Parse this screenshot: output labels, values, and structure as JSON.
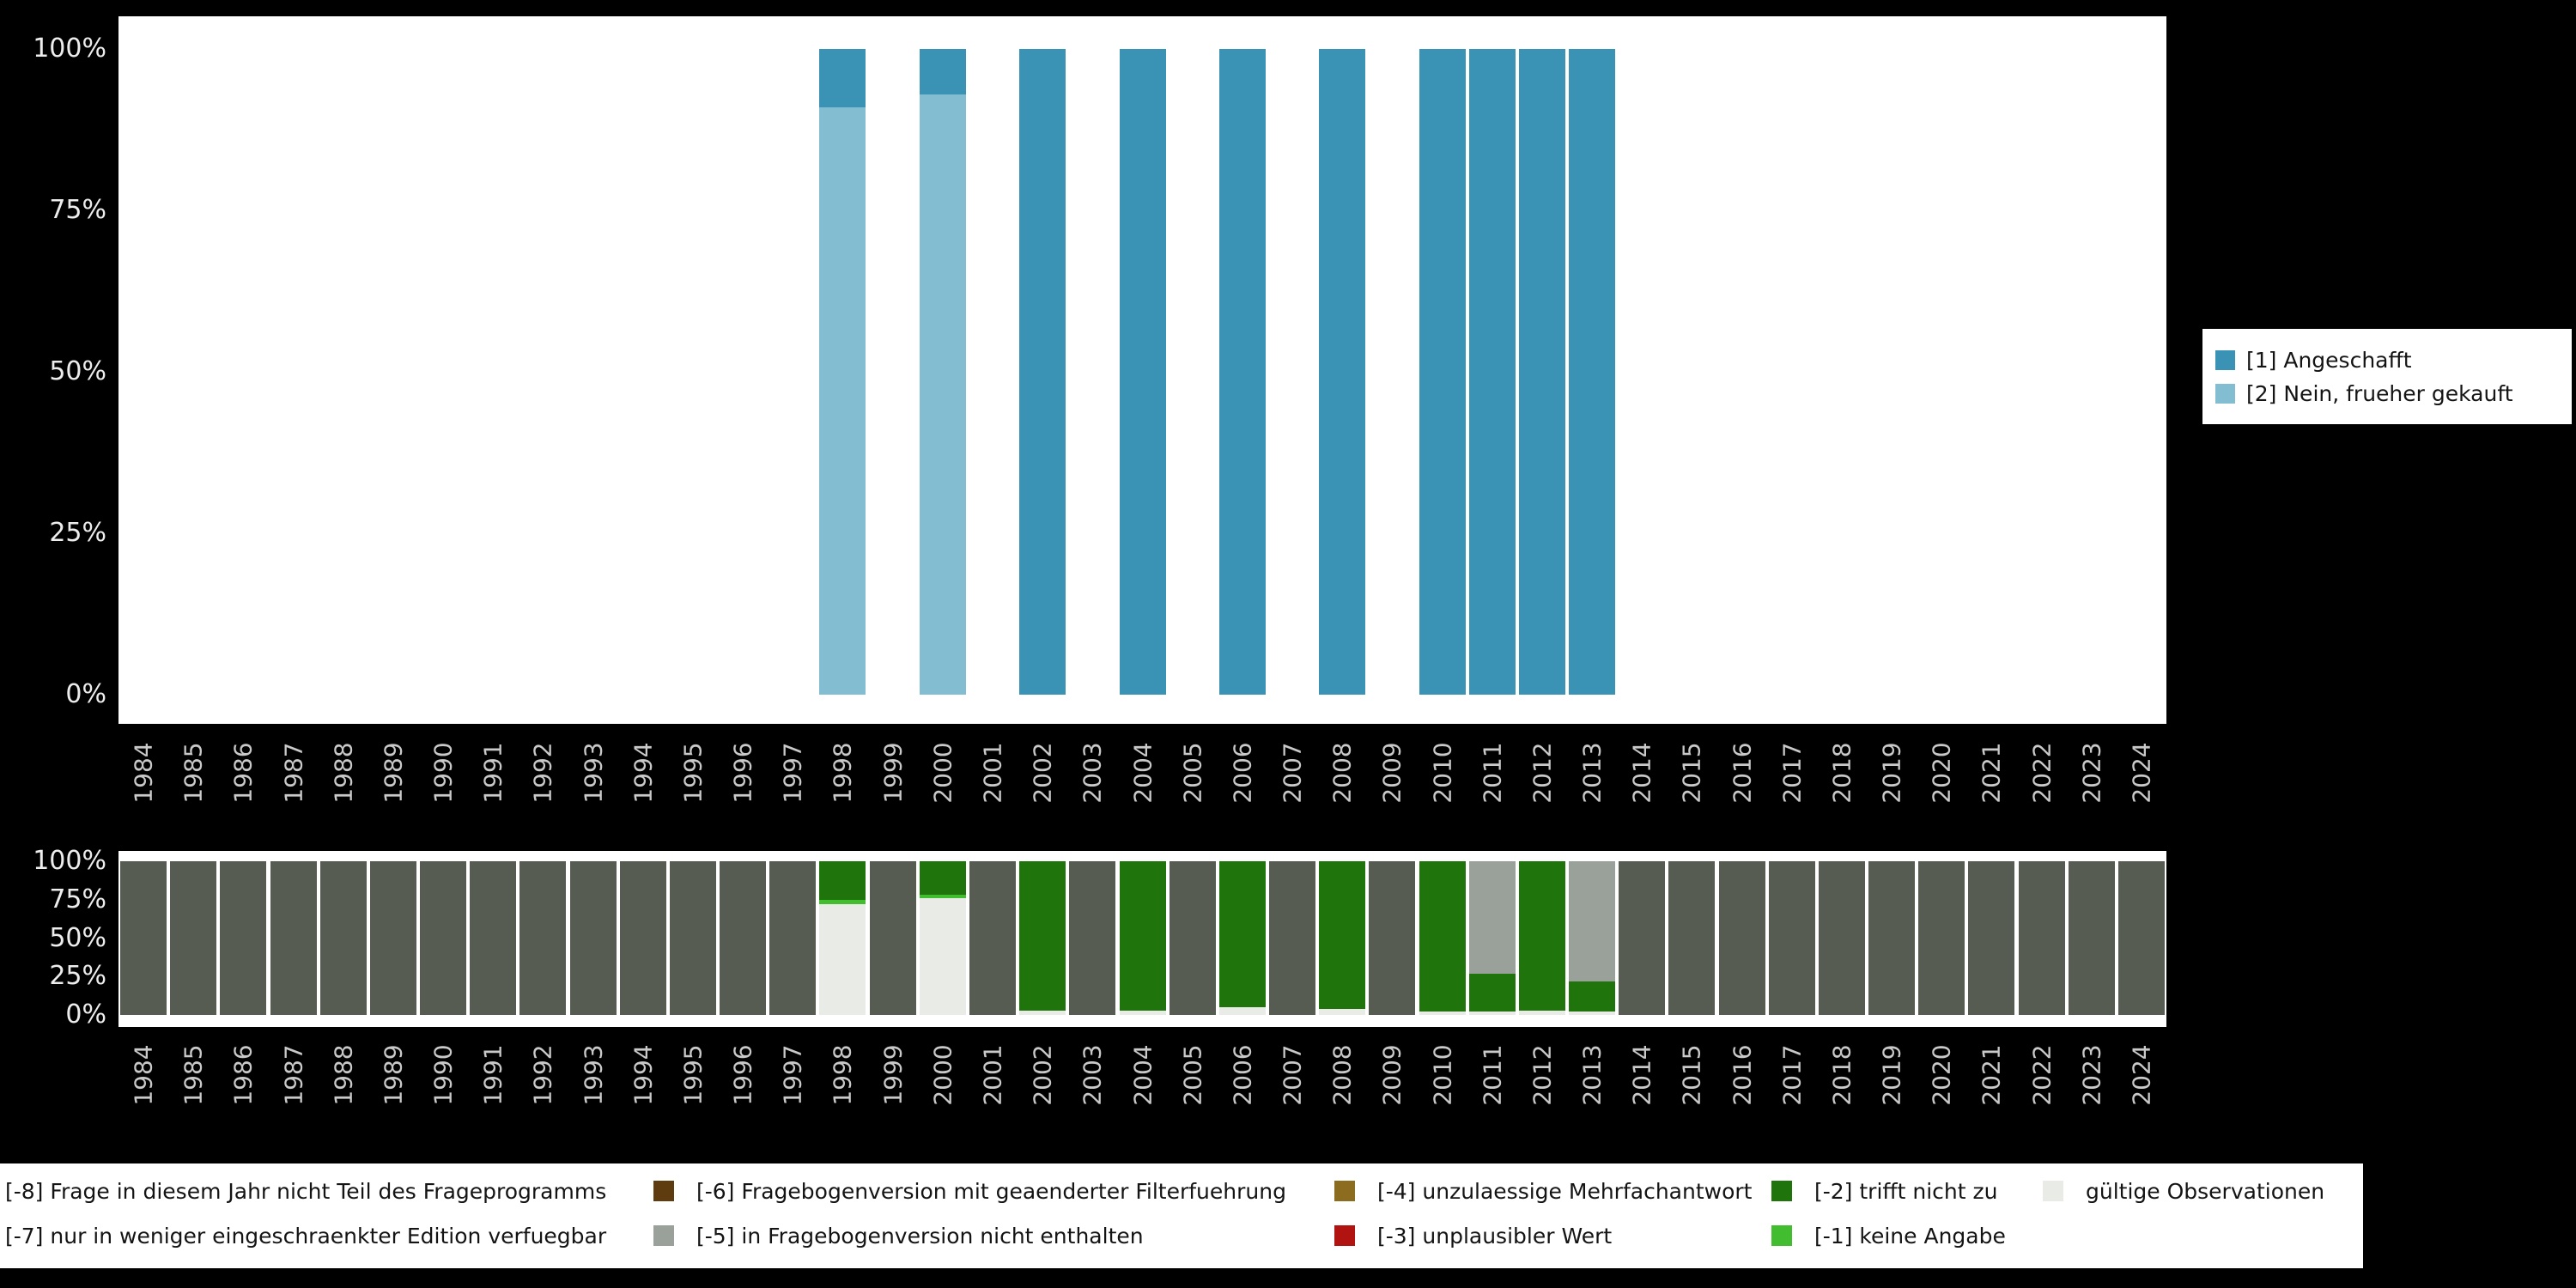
{
  "style": {
    "page_background": "#000000",
    "plot_background": "#ffffff",
    "y_axis_text_color": "#ededed",
    "x_axis_text_color": "#c9c9c9",
    "legend_background": "#ffffff",
    "legend_text_color": "#141414"
  },
  "top_legend": {
    "items": [
      {
        "label": "[1] Angeschafft",
        "color": "#3a92b4"
      },
      {
        "label": "[2] Nein, frueher gekauft",
        "color": "#82bdd2"
      }
    ]
  },
  "bottom_legend": {
    "rows": [
      [
        {
          "label": "[-8] Frage in diesem Jahr nicht Teil des Frageprogramms",
          "color": null
        },
        {
          "label": "[-6] Fragebogenversion mit geaenderter Filterfuehrung",
          "color": "#5e3c0f"
        },
        {
          "label": "[-4] unzulaessige Mehrfachantwort",
          "color": "#8c6d1f"
        },
        {
          "label": "[-2] trifft nicht zu",
          "color": "#1f750c"
        },
        {
          "label": "gültige Observationen",
          "color": "#e8ebe6"
        }
      ],
      [
        {
          "label": "[-7] nur in weniger eingeschraenkter Edition verfuegbar",
          "color": null
        },
        {
          "label": "[-5] in Fragebogenversion nicht enthalten",
          "color": "#9aa19a"
        },
        {
          "label": "[-3] unplausibler Wert",
          "color": "#b01310"
        },
        {
          "label": "[-1] keine Angabe",
          "color": "#41bd2f"
        }
      ]
    ]
  },
  "chart_data": [
    {
      "id": "answer_frequencies",
      "type": "bar",
      "stacked": true,
      "stacking_order": "bottom-to-top",
      "unit": "percent",
      "ylim": [
        0,
        100
      ],
      "y_tick_labels": [
        "100%",
        "75%",
        "50%",
        "25%",
        "0%"
      ],
      "categories": [
        "1984",
        "1985",
        "1986",
        "1987",
        "1988",
        "1989",
        "1990",
        "1991",
        "1992",
        "1993",
        "1994",
        "1995",
        "1996",
        "1997",
        "1998",
        "1999",
        "2000",
        "2001",
        "2002",
        "2003",
        "2004",
        "2005",
        "2006",
        "2007",
        "2008",
        "2009",
        "2010",
        "2011",
        "2012",
        "2013",
        "2014",
        "2015",
        "2016",
        "2017",
        "2018",
        "2019",
        "2020",
        "2021",
        "2022",
        "2023",
        "2024"
      ],
      "series": [
        {
          "name": "[2] Nein, frueher gekauft",
          "color": "#82bdd2",
          "values": [
            0,
            0,
            0,
            0,
            0,
            0,
            0,
            0,
            0,
            0,
            0,
            0,
            0,
            0,
            91,
            0,
            93,
            0,
            0,
            0,
            0,
            0,
            0,
            0,
            0,
            0,
            0,
            0,
            0,
            0,
            0,
            0,
            0,
            0,
            0,
            0,
            0,
            0,
            0,
            0,
            0
          ]
        },
        {
          "name": "[1] Angeschafft",
          "color": "#3a92b4",
          "values": [
            0,
            0,
            0,
            0,
            0,
            0,
            0,
            0,
            0,
            0,
            0,
            0,
            0,
            0,
            9,
            0,
            7,
            0,
            100,
            0,
            100,
            0,
            100,
            0,
            100,
            0,
            100,
            100,
            100,
            100,
            0,
            0,
            0,
            0,
            0,
            0,
            0,
            0,
            0,
            0,
            0
          ]
        }
      ]
    },
    {
      "id": "missings",
      "type": "bar",
      "stacked": true,
      "stacking_order": "bottom-to-top",
      "unit": "percent",
      "ylim": [
        0,
        100
      ],
      "y_tick_labels": [
        "100%",
        "75%",
        "50%",
        "25%",
        "0%"
      ],
      "categories": [
        "1984",
        "1985",
        "1986",
        "1987",
        "1988",
        "1989",
        "1990",
        "1991",
        "1992",
        "1993",
        "1994",
        "1995",
        "1996",
        "1997",
        "1998",
        "1999",
        "2000",
        "2001",
        "2002",
        "2003",
        "2004",
        "2005",
        "2006",
        "2007",
        "2008",
        "2009",
        "2010",
        "2011",
        "2012",
        "2013",
        "2014",
        "2015",
        "2016",
        "2017",
        "2018",
        "2019",
        "2020",
        "2021",
        "2022",
        "2023",
        "2024"
      ],
      "series": [
        {
          "name": "gültige Observationen",
          "color": "#e8ebe6",
          "values": [
            0,
            0,
            0,
            0,
            0,
            0,
            0,
            0,
            0,
            0,
            0,
            0,
            0,
            0,
            72,
            0,
            76,
            0,
            3,
            0,
            3,
            0,
            5,
            0,
            4,
            0,
            2,
            2,
            3,
            2,
            0,
            0,
            0,
            0,
            0,
            0,
            0,
            0,
            0,
            0,
            0
          ]
        },
        {
          "name": "[-1] keine Angabe",
          "color": "#41bd2f",
          "values": [
            0,
            0,
            0,
            0,
            0,
            0,
            0,
            0,
            0,
            0,
            0,
            0,
            0,
            0,
            3,
            0,
            2,
            0,
            0,
            0,
            0,
            0,
            0,
            0,
            0,
            0,
            0,
            0,
            0,
            0,
            0,
            0,
            0,
            0,
            0,
            0,
            0,
            0,
            0,
            0,
            0
          ]
        },
        {
          "name": "[-2] trifft nicht zu",
          "color": "#1f750c",
          "values": [
            0,
            0,
            0,
            0,
            0,
            0,
            0,
            0,
            0,
            0,
            0,
            0,
            0,
            0,
            25,
            0,
            22,
            0,
            97,
            0,
            97,
            0,
            95,
            0,
            96,
            0,
            98,
            25,
            97,
            20,
            0,
            0,
            0,
            0,
            0,
            0,
            0,
            0,
            0,
            0,
            0
          ]
        },
        {
          "name": "[-5] in Fragebogenversion nicht enthalten",
          "color": "#9aa19a",
          "values": [
            0,
            0,
            0,
            0,
            0,
            0,
            0,
            0,
            0,
            0,
            0,
            0,
            0,
            0,
            0,
            0,
            0,
            0,
            0,
            0,
            0,
            0,
            0,
            0,
            0,
            0,
            0,
            73,
            0,
            78,
            0,
            0,
            0,
            0,
            0,
            0,
            0,
            0,
            0,
            0,
            0
          ]
        },
        {
          "name": "[-8] Frage in diesem Jahr nicht Teil des Frageprogramms",
          "color": "#575c53",
          "values": [
            100,
            100,
            100,
            100,
            100,
            100,
            100,
            100,
            100,
            100,
            100,
            100,
            100,
            100,
            0,
            100,
            0,
            100,
            0,
            100,
            0,
            100,
            0,
            100,
            0,
            100,
            0,
            0,
            0,
            0,
            100,
            100,
            100,
            100,
            100,
            100,
            100,
            100,
            100,
            100,
            100
          ]
        }
      ]
    }
  ]
}
